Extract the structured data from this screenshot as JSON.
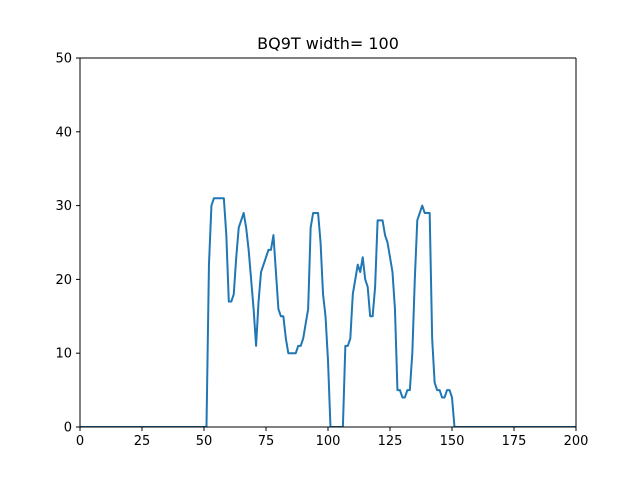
{
  "chart_data": {
    "type": "line",
    "title": "BQ9T width= 100",
    "xlabel": "",
    "ylabel": "",
    "xlim": [
      0,
      200
    ],
    "ylim": [
      0,
      50
    ],
    "grid": false,
    "x_ticks": [
      0,
      25,
      50,
      75,
      100,
      125,
      150,
      175,
      200
    ],
    "y_ticks": [
      0,
      10,
      20,
      30,
      40,
      50
    ],
    "series_color": "#1f77b4",
    "series": [
      {
        "x": [
          0,
          51,
          52,
          53,
          54,
          55,
          56,
          57,
          58,
          59,
          60,
          61,
          62,
          63,
          64,
          65,
          66,
          67,
          68,
          69,
          70,
          71,
          72,
          73,
          74,
          75,
          76,
          77,
          78,
          79,
          80,
          81,
          82,
          83,
          84,
          85,
          86,
          87,
          88,
          89,
          90,
          91,
          92,
          93,
          94,
          95,
          96,
          97,
          98,
          99,
          100,
          101,
          102,
          103,
          104,
          105,
          106,
          107,
          108,
          109,
          110,
          111,
          112,
          113,
          114,
          115,
          116,
          117,
          118,
          119,
          120,
          121,
          122,
          123,
          124,
          125,
          126,
          127,
          128,
          129,
          130,
          131,
          132,
          133,
          134,
          135,
          136,
          137,
          138,
          139,
          140,
          141,
          142,
          143,
          144,
          145,
          146,
          147,
          148,
          149,
          150,
          151,
          200
        ],
        "y": [
          0,
          0,
          22,
          30,
          31,
          31,
          31,
          31,
          31,
          26,
          17,
          17,
          18,
          23,
          27,
          28,
          29,
          27,
          24,
          20,
          16,
          11,
          17,
          21,
          22,
          23,
          24,
          24,
          26,
          21,
          16,
          15,
          15,
          12,
          10,
          10,
          10,
          10,
          11,
          11,
          12,
          14,
          16,
          27,
          29,
          29,
          29,
          25,
          18,
          15,
          9,
          0,
          0,
          0,
          0,
          0,
          0,
          11,
          11,
          12,
          18,
          20,
          22,
          21,
          23,
          20,
          19,
          15,
          15,
          19,
          28,
          28,
          28,
          26,
          25,
          23,
          21,
          16,
          5,
          5,
          4,
          4,
          5,
          5,
          10,
          20,
          28,
          29,
          30,
          29,
          29,
          29,
          12,
          6,
          5,
          5,
          4,
          4,
          5,
          5,
          4,
          0,
          0
        ]
      }
    ]
  }
}
